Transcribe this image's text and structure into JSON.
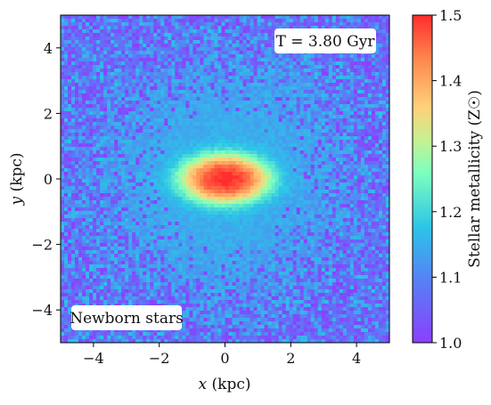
{
  "chart_data": {
    "type": "heatmap",
    "title": "",
    "xlabel": "x (kpc)",
    "ylabel": "y (kpc)",
    "xlim": [
      -5,
      5
    ],
    "ylim": [
      -5,
      5
    ],
    "xticks": [
      -4,
      -2,
      0,
      2,
      4
    ],
    "yticks": [
      -4,
      -2,
      0,
      2,
      4
    ],
    "xtick_labels": [
      "−4",
      "−2",
      "0",
      "2",
      "4"
    ],
    "ytick_labels": [
      "−4",
      "−2",
      "0",
      "2",
      "4"
    ],
    "grid": false,
    "colormap": "rainbow",
    "colorbar": {
      "label": "Stellar metallicity (Z☉)",
      "range": [
        1.0,
        1.5
      ],
      "ticks": [
        1.0,
        1.1,
        1.2,
        1.3,
        1.4,
        1.5
      ],
      "tick_labels": [
        "1.0",
        "1.1",
        "1.2",
        "1.3",
        "1.4",
        "1.5"
      ]
    },
    "annotations": {
      "time_label": "T = 3.80 Gyr",
      "sample_label": "Newborn stars"
    },
    "metallicity_field": {
      "center_value": 1.5,
      "outskirt_value": 1.0,
      "bar_half_length_kpc": 1.4,
      "bar_half_width_kpc": 0.75
    }
  }
}
